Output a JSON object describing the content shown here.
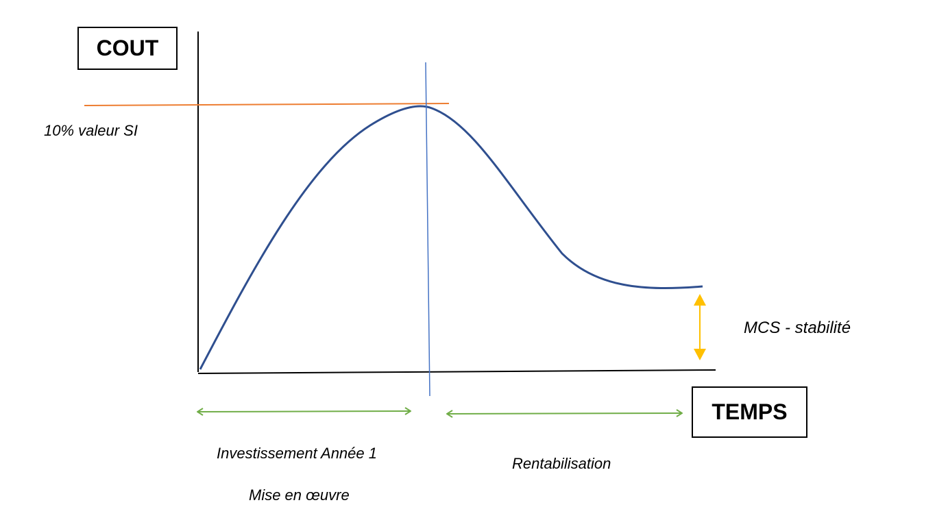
{
  "y_axis_label": "COUT",
  "x_axis_label": "TEMPS",
  "threshold_label": "10% valeur SI",
  "stability_label": "MCS - stabilité",
  "phase_1": {
    "label_1": "Investissement Année 1",
    "label_2": "Mise en œuvre"
  },
  "phase_2": {
    "label": "Rentabilisation"
  },
  "colors": {
    "axes": "#000000",
    "curve": "#2f4f8f",
    "threshold_line": "#ed7d31",
    "divider_line": "#4472c4",
    "phase_arrows": "#70ad47",
    "stability_arrow": "#ffc000"
  }
}
